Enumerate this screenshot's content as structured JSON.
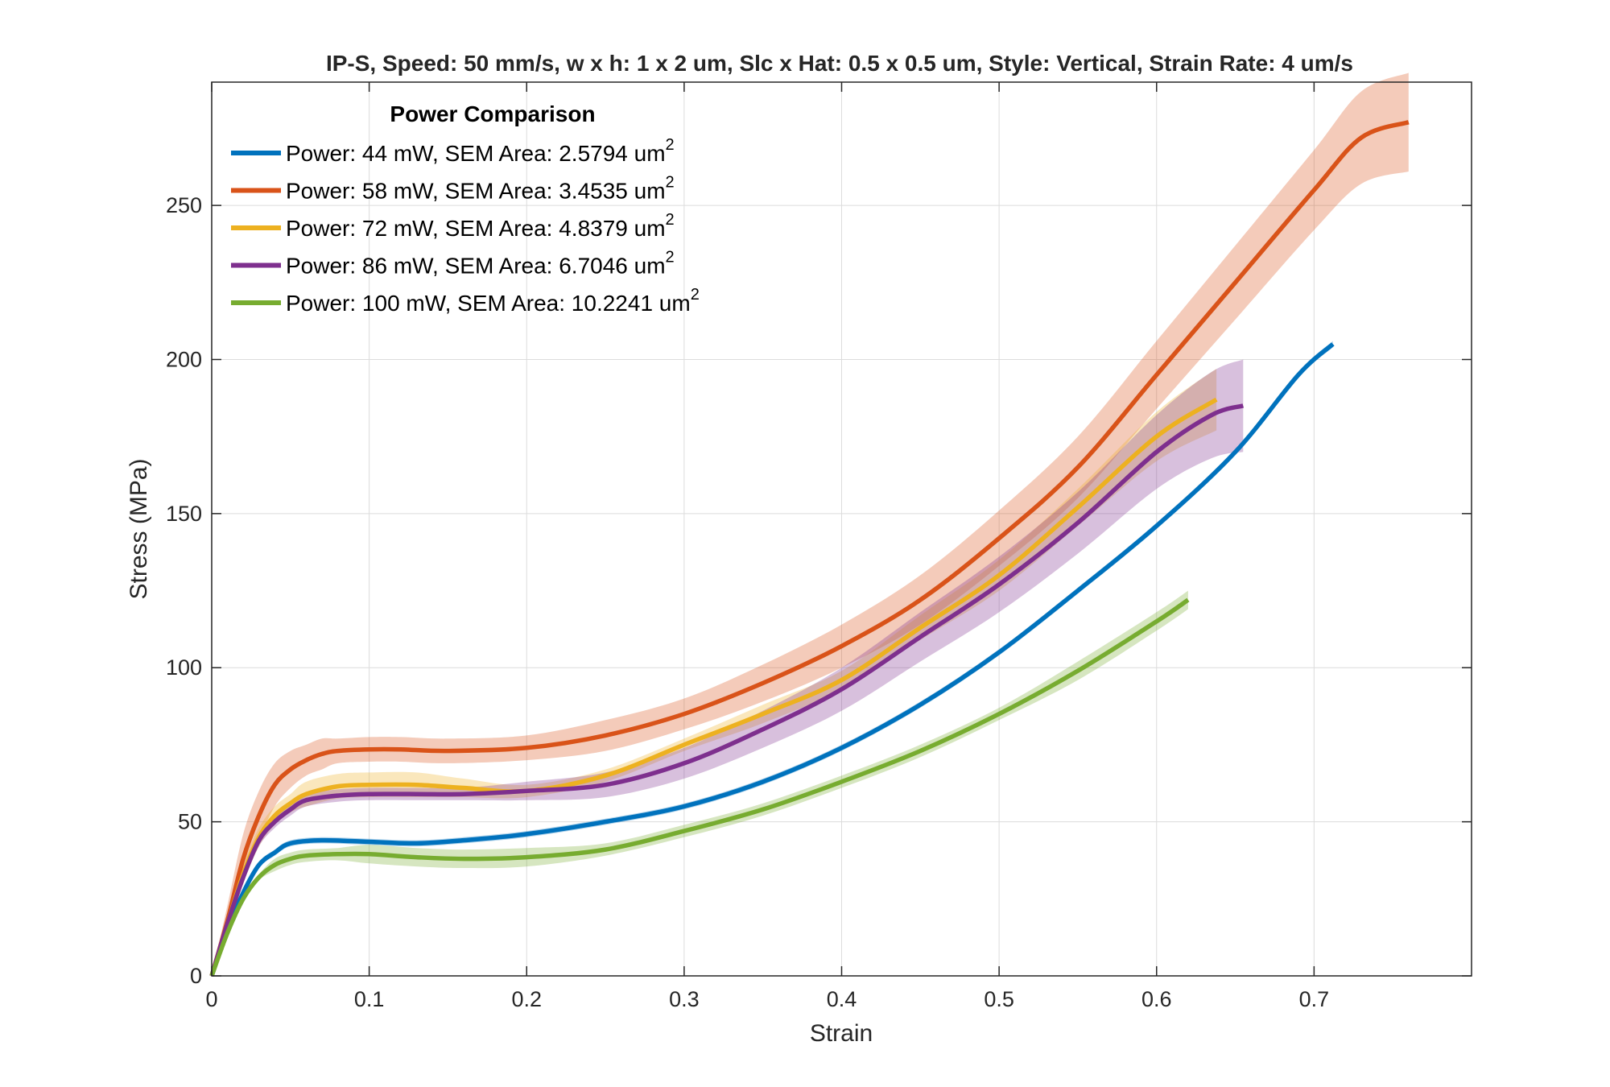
{
  "chart_data": {
    "type": "line",
    "title": "IP-S, Speed: 50 mm/s, w x h: 1 x 2 um, Slc x Hat: 0.5 x 0.5 um, Style: Vertical, Strain Rate: 4 um/s",
    "xlabel": "Strain",
    "ylabel": "Stress (MPa)",
    "xlim": [
      0,
      0.8
    ],
    "ylim": [
      0,
      290
    ],
    "xticks": [
      0,
      0.1,
      0.2,
      0.3,
      0.4,
      0.5,
      0.6,
      0.7
    ],
    "yticks": [
      0,
      50,
      100,
      150,
      200,
      250
    ],
    "xtick_labels": [
      "0",
      "0.1",
      "0.2",
      "0.3",
      "0.4",
      "0.5",
      "0.6",
      "0.7"
    ],
    "ytick_labels": [
      "0",
      "50",
      "100",
      "150",
      "200",
      "250"
    ],
    "grid": true,
    "legend": {
      "title": "Power Comparison",
      "placement": "top-left",
      "unit_superscript": "2"
    },
    "series": [
      {
        "name": "Power: 44 mW, SEM Area: 2.5794 um",
        "color": "#0072BD",
        "x": [
          0,
          0.01,
          0.02,
          0.03,
          0.04,
          0.05,
          0.07,
          0.1,
          0.13,
          0.16,
          0.2,
          0.25,
          0.3,
          0.35,
          0.4,
          0.45,
          0.5,
          0.55,
          0.6,
          0.65,
          0.69,
          0.712
        ],
        "y": [
          0,
          15,
          27,
          36,
          40,
          43,
          44,
          43.5,
          43,
          44,
          46,
          50,
          55,
          63,
          74,
          88,
          105,
          125,
          146,
          170,
          195,
          205
        ],
        "band": [
          0,
          1,
          1,
          1,
          1,
          1,
          1,
          1,
          1,
          1,
          1,
          1,
          1,
          1,
          1,
          1,
          1,
          1,
          1,
          1,
          1,
          1
        ]
      },
      {
        "name": "Power: 58 mW, SEM Area: 3.4535 um",
        "color": "#D95319",
        "x": [
          0,
          0.01,
          0.02,
          0.03,
          0.04,
          0.05,
          0.06,
          0.07,
          0.08,
          0.1,
          0.12,
          0.15,
          0.2,
          0.25,
          0.3,
          0.35,
          0.4,
          0.45,
          0.5,
          0.55,
          0.6,
          0.65,
          0.7,
          0.73,
          0.76
        ],
        "y": [
          0,
          18,
          38,
          52,
          62,
          67,
          70,
          72,
          73,
          73.5,
          73.5,
          73,
          74,
          78,
          85,
          95,
          107,
          122,
          142,
          165,
          195,
          225,
          255,
          272,
          277
        ],
        "band": [
          0,
          5,
          8,
          8,
          7,
          6,
          5,
          5,
          4,
          4,
          4,
          4,
          4,
          5,
          5,
          6,
          7,
          8,
          9,
          10,
          11,
          12,
          13,
          15,
          16
        ]
      },
      {
        "name": "Power: 72 mW, SEM Area: 4.8379 um",
        "color": "#EDB120",
        "x": [
          0,
          0.01,
          0.02,
          0.03,
          0.04,
          0.05,
          0.06,
          0.08,
          0.1,
          0.13,
          0.16,
          0.2,
          0.25,
          0.3,
          0.35,
          0.4,
          0.45,
          0.5,
          0.55,
          0.6,
          0.638
        ],
        "y": [
          0,
          17,
          33,
          45,
          52,
          56,
          59,
          61.5,
          62,
          62,
          61,
          60,
          65,
          75,
          85,
          96,
          113,
          130,
          152,
          175,
          187
        ],
        "band": [
          0,
          2,
          3,
          3,
          3,
          3,
          4,
          4,
          4,
          4,
          3,
          2,
          2,
          2,
          3,
          3,
          4,
          5,
          6,
          8,
          10
        ]
      },
      {
        "name": "Power: 86 mW, SEM Area: 6.7046 um",
        "color": "#7E2F8E",
        "x": [
          0,
          0.01,
          0.02,
          0.03,
          0.04,
          0.05,
          0.06,
          0.08,
          0.1,
          0.13,
          0.16,
          0.2,
          0.25,
          0.3,
          0.35,
          0.4,
          0.45,
          0.5,
          0.55,
          0.6,
          0.635,
          0.655
        ],
        "y": [
          0,
          17,
          32,
          44,
          50,
          54,
          57,
          58.5,
          59,
          59,
          59,
          60,
          62,
          69,
          80,
          93,
          110,
          127,
          147,
          170,
          182,
          185
        ],
        "band": [
          0,
          2,
          2,
          2,
          2,
          2,
          2,
          2,
          2,
          2,
          2,
          3,
          4,
          5,
          6,
          7,
          8,
          9,
          10,
          12,
          14,
          15
        ]
      },
      {
        "name": "Power: 100 mW, SEM Area: 10.2241 um",
        "color": "#77AC30",
        "x": [
          0,
          0.01,
          0.02,
          0.03,
          0.04,
          0.05,
          0.06,
          0.08,
          0.1,
          0.13,
          0.16,
          0.2,
          0.25,
          0.3,
          0.35,
          0.4,
          0.45,
          0.5,
          0.55,
          0.6,
          0.62
        ],
        "y": [
          0,
          14,
          25,
          32,
          36,
          38,
          39,
          39.5,
          39.5,
          38.5,
          38,
          38.5,
          41,
          47,
          54,
          63,
          73,
          85,
          99,
          115,
          122
        ],
        "band": [
          0,
          1,
          1,
          1,
          2,
          2,
          2,
          2,
          3,
          3,
          3,
          3,
          2,
          2,
          2,
          2,
          2,
          2,
          3,
          3,
          3
        ]
      }
    ]
  }
}
